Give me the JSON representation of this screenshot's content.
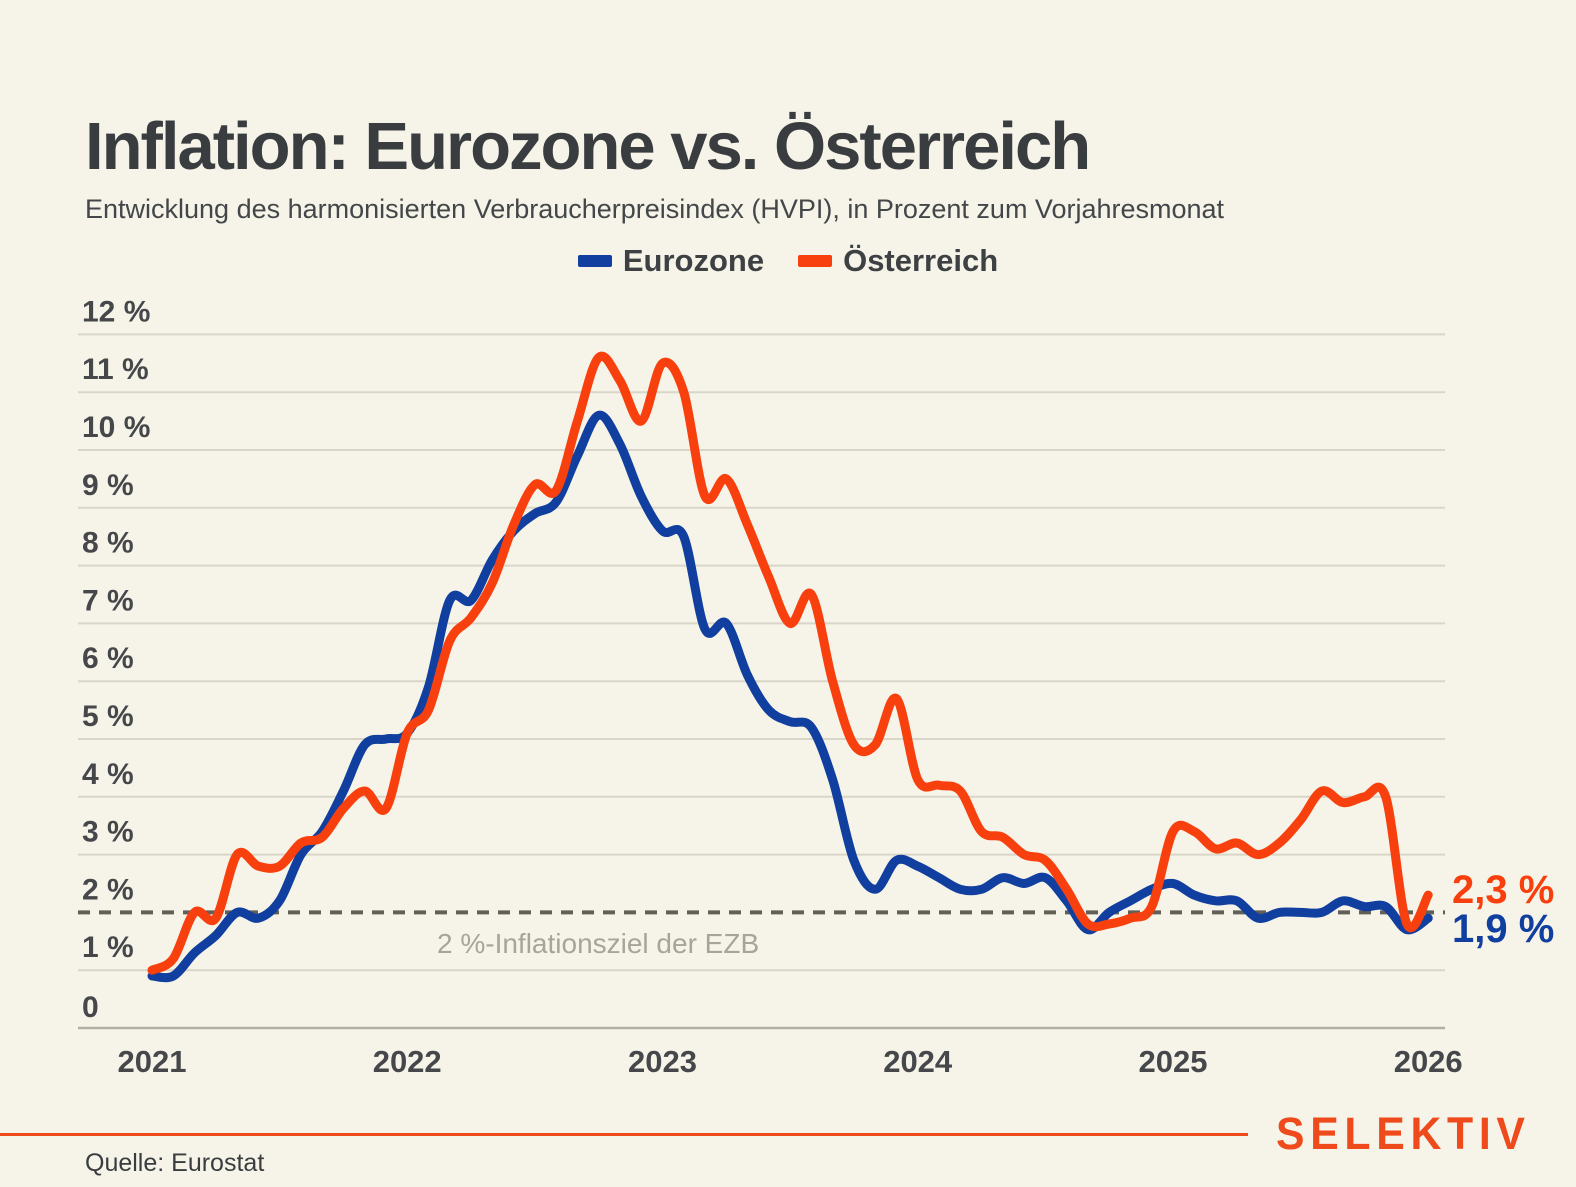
{
  "page": {
    "title": "Inflation: Eurozone vs. Österreich",
    "subtitle": "Entwicklung des harmonisierten Verbraucherpreisindex (HVPI), in Prozent zum Vorjahresmonat",
    "source": "Quelle: Eurostat",
    "brand": "SELEKTIV"
  },
  "colors": {
    "background": "#f6f4e8",
    "text": "#3a3d40",
    "tick_text": "#45474a",
    "grid": "#d9d6c9",
    "axis": "#b1afa4",
    "target_line": "#605f58",
    "target_label": "#a7a49a",
    "eurozone": "#113f9f",
    "austria": "#f8400e",
    "brand": "#ee4a1c"
  },
  "chart_data": {
    "type": "line",
    "title": "Inflation: Eurozone vs. Österreich",
    "unit": "percent yoy",
    "x_start": "2021-01",
    "x_interval": "month",
    "x_tick_labels": [
      "2021",
      "2022",
      "2023",
      "2024",
      "2025",
      "2026"
    ],
    "y_tick_labels": [
      "12 %",
      "11 %",
      "10 %",
      "9 %",
      "8 %",
      "7 %",
      "6 %",
      "5 %",
      "4 %",
      "3 %",
      "2 %",
      "1 %",
      "0"
    ],
    "ylim": [
      0,
      12
    ],
    "grid": true,
    "legend_position": "top-center",
    "target_line": {
      "value": 2,
      "label": "2 %-Inflationsziel der EZB"
    },
    "series": [
      {
        "name": "Eurozone",
        "color_key": "eurozone",
        "end_label": "1,9 %",
        "values": [
          0.9,
          0.9,
          1.3,
          1.6,
          2.0,
          1.9,
          2.2,
          3.0,
          3.4,
          4.1,
          4.9,
          5.0,
          5.1,
          5.9,
          7.4,
          7.4,
          8.1,
          8.6,
          8.9,
          9.1,
          9.9,
          10.6,
          10.1,
          9.2,
          8.6,
          8.5,
          6.9,
          7.0,
          6.1,
          5.5,
          5.3,
          5.2,
          4.3,
          2.9,
          2.4,
          2.9,
          2.8,
          2.6,
          2.4,
          2.4,
          2.6,
          2.5,
          2.6,
          2.2,
          1.7,
          2.0,
          2.2,
          2.4,
          2.5,
          2.3,
          2.2,
          2.2,
          1.9,
          2.0,
          2.0,
          2.0,
          2.2,
          2.1,
          2.1,
          1.7,
          1.9
        ]
      },
      {
        "name": "Österreich",
        "color_key": "austria",
        "end_label": "2,3 %",
        "values": [
          1.0,
          1.2,
          2.0,
          1.9,
          3.0,
          2.8,
          2.8,
          3.2,
          3.3,
          3.8,
          4.1,
          3.8,
          5.1,
          5.5,
          6.7,
          7.1,
          7.7,
          8.7,
          9.4,
          9.3,
          10.5,
          11.6,
          11.2,
          10.5,
          11.5,
          11.0,
          9.2,
          9.5,
          8.7,
          7.8,
          7.0,
          7.5,
          6.0,
          4.9,
          4.9,
          5.7,
          4.3,
          4.2,
          4.1,
          3.4,
          3.3,
          3.0,
          2.9,
          2.4,
          1.8,
          1.8,
          1.9,
          2.1,
          3.4,
          3.4,
          3.1,
          3.2,
          3.0,
          3.2,
          3.6,
          4.1,
          3.9,
          4.0,
          4.0,
          1.8,
          2.3
        ]
      }
    ]
  }
}
